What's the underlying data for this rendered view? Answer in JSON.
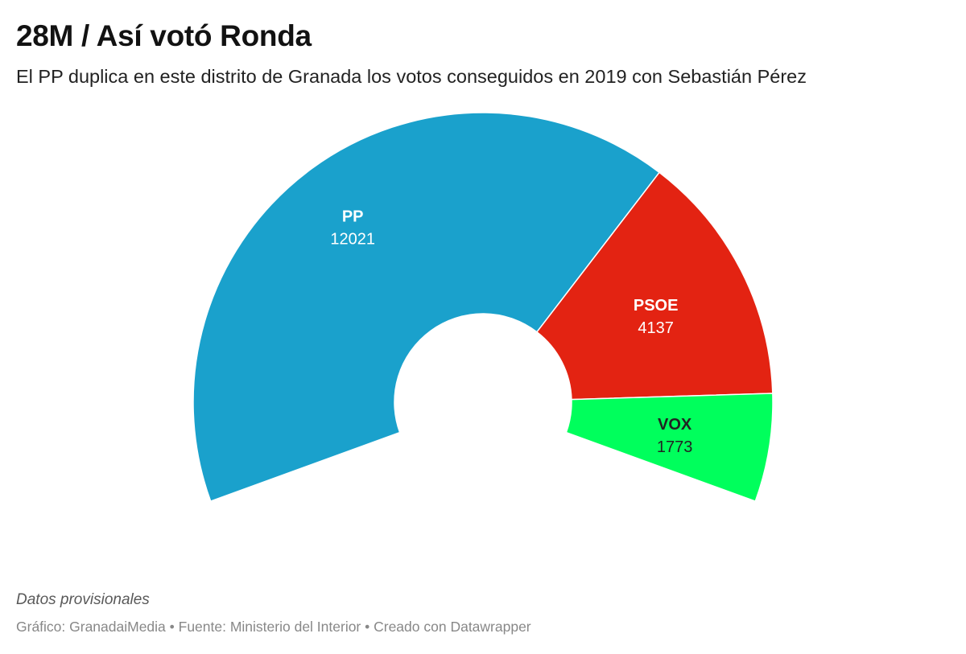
{
  "header": {
    "title": "28M / Así votó Ronda",
    "subtitle": "El PP duplica en este distrito de Granada los votos conseguidos en 2019 con Sebastián Pérez"
  },
  "chart_data": {
    "type": "pie",
    "variant": "partial-donut",
    "categories": [
      "PP",
      "PSOE",
      "VOX"
    ],
    "values": [
      12021,
      4137,
      1773
    ],
    "colors": [
      "#1aa1cc",
      "#e32312",
      "#00ff5c"
    ],
    "label_colors": [
      "#ffffff",
      "#ffffff",
      "#222222"
    ],
    "title": "28M / Así votó Ronda"
  },
  "footer": {
    "notes": "Datos provisionales",
    "byline": "Gráfico: GranadaiMedia • Fuente: Ministerio del Interior • Creado con Datawrapper"
  }
}
